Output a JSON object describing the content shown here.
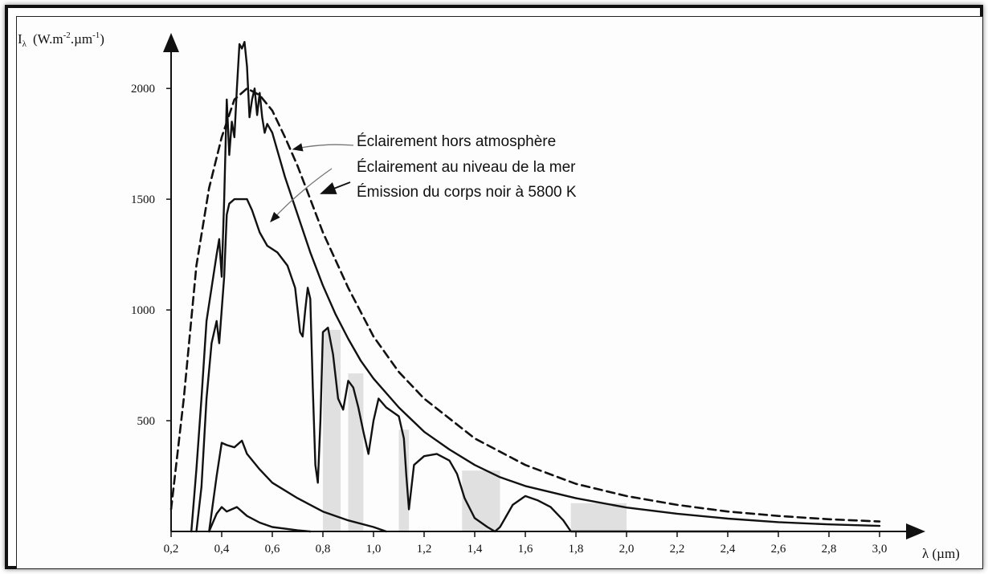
{
  "chart_data": {
    "type": "line",
    "ylabel_symbol": "I",
    "ylabel_sub": "λ",
    "ylabel_units": "(W.m",
    "ylabel_exp1": "-2",
    "ylabel_mid": ".µm",
    "ylabel_exp2": "-1",
    "ylabel_close": ")",
    "xlabel": "λ (µm)",
    "xlim": [
      0.2,
      3.0
    ],
    "ylim": [
      0,
      2200
    ],
    "x_ticks": [
      {
        "value": 0.2,
        "label": "0,2"
      },
      {
        "value": 0.4,
        "label": "0,4"
      },
      {
        "value": 0.6,
        "label": "0,6"
      },
      {
        "value": 0.8,
        "label": "0,8"
      },
      {
        "value": 1.0,
        "label": "1,0"
      },
      {
        "value": 1.2,
        "label": "1,2"
      },
      {
        "value": 1.4,
        "label": "1,4"
      },
      {
        "value": 1.6,
        "label": "1,6"
      },
      {
        "value": 1.8,
        "label": "1,8"
      },
      {
        "value": 2.0,
        "label": "2,0"
      },
      {
        "value": 2.2,
        "label": "2,2"
      },
      {
        "value": 2.4,
        "label": "2,4"
      },
      {
        "value": 2.6,
        "label": "2,6"
      },
      {
        "value": 2.8,
        "label": "2,8"
      },
      {
        "value": 3.0,
        "label": "3,0"
      }
    ],
    "y_ticks": [
      {
        "value": 500,
        "label": "500"
      },
      {
        "value": 1000,
        "label": "1000"
      },
      {
        "value": 1500,
        "label": "1500"
      },
      {
        "value": 2000,
        "label": "2000"
      }
    ],
    "series": [
      {
        "name": "Éclairement hors atmosphère",
        "style": "solid",
        "x": [
          0.28,
          0.3,
          0.32,
          0.34,
          0.36,
          0.38,
          0.39,
          0.4,
          0.41,
          0.42,
          0.43,
          0.44,
          0.45,
          0.46,
          0.47,
          0.48,
          0.49,
          0.5,
          0.51,
          0.52,
          0.53,
          0.54,
          0.55,
          0.56,
          0.57,
          0.58,
          0.6,
          0.62,
          0.65,
          0.7,
          0.75,
          0.8,
          0.85,
          0.9,
          0.95,
          1.0,
          1.1,
          1.2,
          1.3,
          1.4,
          1.5,
          1.6,
          1.8,
          2.0,
          2.2,
          2.4,
          2.6,
          2.8,
          3.0
        ],
        "y": [
          0,
          280,
          600,
          950,
          1100,
          1250,
          1320,
          1150,
          1500,
          1950,
          1700,
          1850,
          1780,
          2000,
          2200,
          2180,
          2210,
          2100,
          1870,
          1950,
          2000,
          1880,
          1980,
          1870,
          1800,
          1840,
          1800,
          1720,
          1600,
          1430,
          1260,
          1110,
          980,
          870,
          770,
          690,
          560,
          450,
          370,
          300,
          245,
          205,
          150,
          108,
          80,
          58,
          42,
          32,
          25
        ]
      },
      {
        "name": "Éclairement au niveau de la mer",
        "style": "solid",
        "x": [
          0.3,
          0.32,
          0.34,
          0.36,
          0.38,
          0.39,
          0.4,
          0.41,
          0.42,
          0.43,
          0.45,
          0.47,
          0.5,
          0.52,
          0.55,
          0.58,
          0.62,
          0.66,
          0.69,
          0.7,
          0.71,
          0.72,
          0.73,
          0.74,
          0.75,
          0.76,
          0.77,
          0.78,
          0.79,
          0.8,
          0.82,
          0.84,
          0.86,
          0.88,
          0.9,
          0.92,
          0.94,
          0.96,
          0.98,
          1.0,
          1.02,
          1.05,
          1.1,
          1.12,
          1.13,
          1.14,
          1.16,
          1.2,
          1.25,
          1.3,
          1.33,
          1.36,
          1.4,
          1.45,
          1.48,
          1.5,
          1.55,
          1.6,
          1.65,
          1.7,
          1.75,
          1.78,
          1.8,
          1.85,
          1.9,
          1.95,
          2.0,
          2.05,
          2.1,
          2.2,
          2.3,
          2.4,
          2.5,
          2.55,
          2.6
        ],
        "y": [
          0,
          200,
          600,
          850,
          950,
          850,
          1000,
          1150,
          1430,
          1480,
          1500,
          1500,
          1500,
          1450,
          1350,
          1290,
          1260,
          1200,
          1100,
          1000,
          900,
          880,
          1000,
          1100,
          1050,
          650,
          300,
          220,
          500,
          900,
          920,
          800,
          600,
          550,
          680,
          650,
          560,
          450,
          350,
          500,
          600,
          560,
          520,
          420,
          250,
          100,
          300,
          340,
          350,
          320,
          260,
          150,
          60,
          20,
          0,
          20,
          120,
          160,
          140,
          110,
          50,
          0,
          0,
          0,
          0,
          0,
          0,
          0,
          0,
          0,
          0,
          0,
          0,
          0,
          0
        ]
      },
      {
        "name": "Émission du corps noir à 5800 K",
        "style": "dashed",
        "x": [
          0.2,
          0.25,
          0.3,
          0.35,
          0.4,
          0.45,
          0.5,
          0.55,
          0.6,
          0.65,
          0.7,
          0.75,
          0.8,
          0.9,
          1.0,
          1.1,
          1.2,
          1.4,
          1.6,
          1.8,
          2.0,
          2.2,
          2.4,
          2.6,
          2.8,
          3.0
        ],
        "y": [
          100,
          600,
          1200,
          1550,
          1780,
          1950,
          2000,
          1970,
          1900,
          1780,
          1650,
          1500,
          1350,
          1100,
          880,
          720,
          600,
          420,
          300,
          215,
          160,
          120,
          90,
          70,
          55,
          45
        ]
      },
      {
        "name": "",
        "style": "solid",
        "x": [
          0.35,
          0.38,
          0.4,
          0.42,
          0.45,
          0.48,
          0.5,
          0.55,
          0.6,
          0.7,
          0.8,
          0.9,
          1.0,
          1.05
        ],
        "y": [
          0,
          250,
          400,
          390,
          380,
          410,
          350,
          280,
          220,
          150,
          90,
          50,
          20,
          0
        ]
      },
      {
        "name": "",
        "style": "solid",
        "x": [
          0.35,
          0.38,
          0.4,
          0.42,
          0.44,
          0.46,
          0.48,
          0.5,
          0.55,
          0.6,
          0.7,
          0.75
        ],
        "y": [
          0,
          80,
          110,
          90,
          100,
          110,
          90,
          70,
          40,
          20,
          5,
          0
        ]
      }
    ],
    "annotations": [
      {
        "text": "Éclairement hors atmosphère",
        "points_to": "Éclairement hors atmosphère"
      },
      {
        "text": "Éclairement au niveau de la mer",
        "points_to": "Éclairement au niveau de la mer"
      },
      {
        "text": "Émission du corps noir à 5800 K",
        "points_to": "Émission du corps noir à 5800 K"
      }
    ],
    "grid": false,
    "legend": "none",
    "line_color": "#111111",
    "shade_color": "#c8c8c8"
  }
}
